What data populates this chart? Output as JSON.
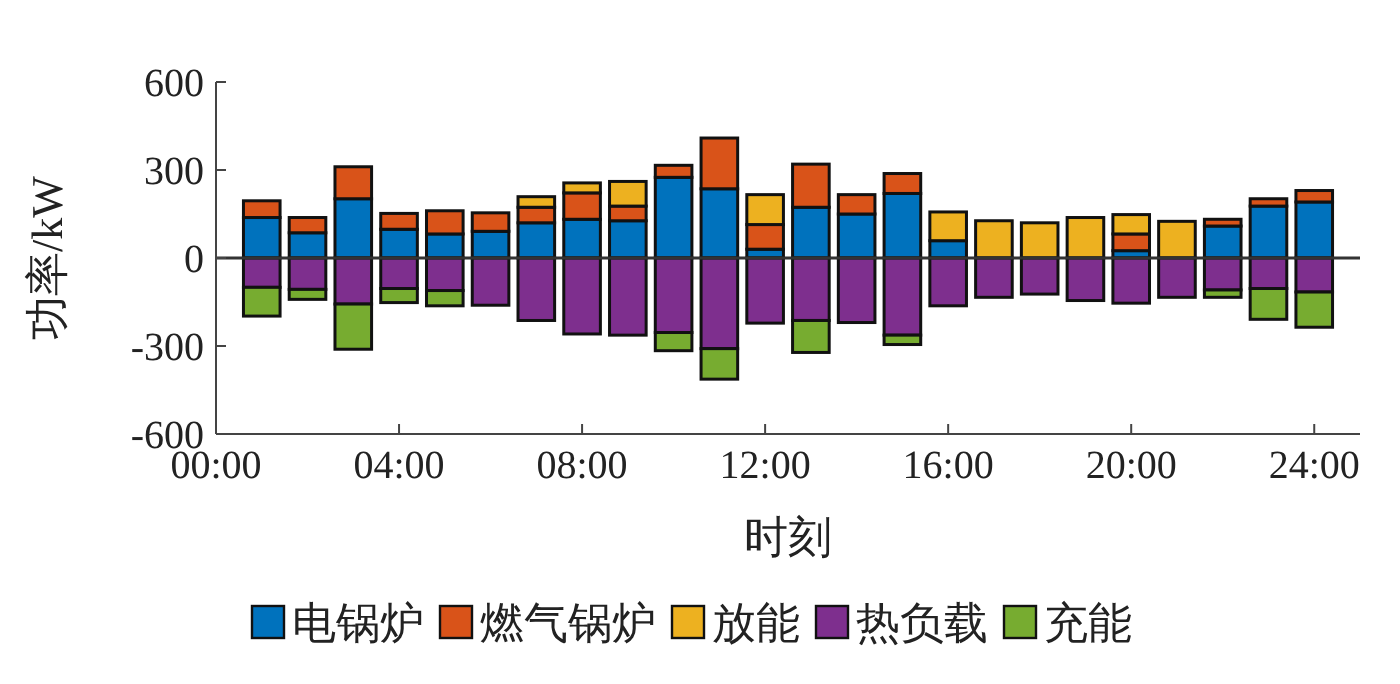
{
  "chart_data": {
    "type": "bar",
    "stacked": true,
    "xlabel": "时刻",
    "ylabel": "功率/kW",
    "x": [
      1,
      2,
      3,
      4,
      5,
      6,
      7,
      8,
      9,
      10,
      11,
      12,
      13,
      14,
      15,
      16,
      17,
      18,
      19,
      20,
      21,
      22,
      23,
      24
    ],
    "series": [
      {
        "name": "电锅炉",
        "color": "#0072bd",
        "values": [
          138,
          86,
          202,
          98,
          82,
          91,
          120,
          132,
          127,
          275,
          236,
          30,
          173,
          150,
          220,
          59,
          0,
          0,
          0,
          25,
          0,
          109,
          177,
          191
        ]
      },
      {
        "name": "燃气锅炉",
        "color": "#d95319",
        "values": [
          57,
          52,
          109,
          54,
          79,
          63,
          53,
          90,
          50,
          41,
          173,
          84,
          147,
          66,
          68,
          0,
          0,
          0,
          0,
          57,
          0,
          23,
          25,
          39
        ]
      },
      {
        "name": "放能",
        "color": "#edb120",
        "values": [
          0,
          0,
          0,
          0,
          0,
          0,
          36,
          34,
          84,
          0,
          0,
          102,
          0,
          0,
          0,
          98,
          127,
          120,
          138,
          66,
          125,
          0,
          0,
          0
        ]
      },
      {
        "name": "热负载",
        "color": "#7e2f8e",
        "values": [
          -100,
          -107,
          -157,
          -104,
          -111,
          -161,
          -213,
          -259,
          -263,
          -254,
          -309,
          -222,
          -213,
          -220,
          -263,
          -163,
          -134,
          -123,
          -145,
          -154,
          -134,
          -109,
          -104,
          -116
        ]
      },
      {
        "name": "充能",
        "color": "#77ac30",
        "values": [
          -98,
          -34,
          -154,
          -48,
          -52,
          0,
          0,
          0,
          0,
          -62,
          -104,
          0,
          -109,
          0,
          -32,
          0,
          0,
          0,
          0,
          0,
          0,
          -25,
          -105,
          -120
        ]
      }
    ],
    "xlim": [
      0,
      25
    ],
    "xticks": [
      {
        "value": 0,
        "label": "00:00"
      },
      {
        "value": 4,
        "label": "04:00"
      },
      {
        "value": 8,
        "label": "08:00"
      },
      {
        "value": 12,
        "label": "12:00"
      },
      {
        "value": 16,
        "label": "16:00"
      },
      {
        "value": 20,
        "label": "20:00"
      },
      {
        "value": 24,
        "label": "24:00"
      }
    ],
    "ylim": [
      -600,
      600
    ],
    "yticks": [
      -600,
      -300,
      0,
      300,
      600
    ],
    "ref_lines": [
      {
        "axis": "y",
        "value": 0,
        "color": "#333333"
      }
    ],
    "legend": "bottom"
  }
}
